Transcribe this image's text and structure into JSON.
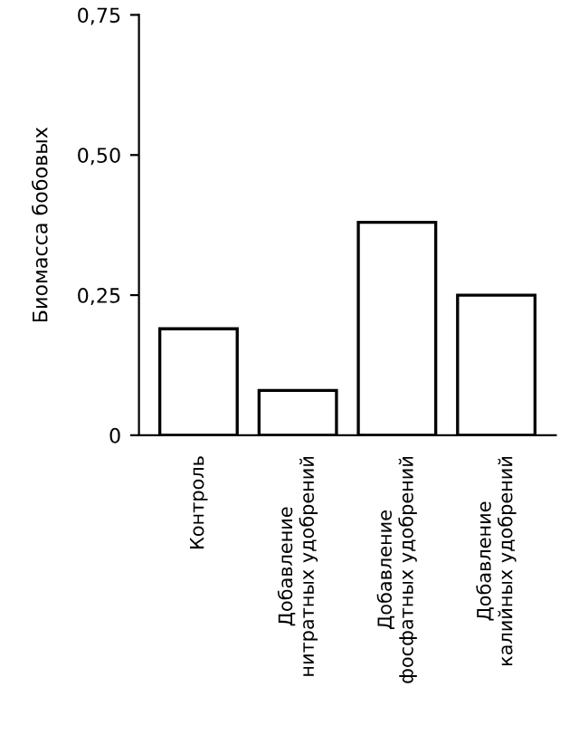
{
  "chart_data": {
    "type": "bar",
    "ylabel": "Биомасса бобовых",
    "categories": [
      "Контроль",
      "Добавление\nнитратных удобрений",
      "Добавление\nфосфатных удобрений",
      "Добавление\nкалийных удобрений"
    ],
    "values": [
      0.19,
      0.08,
      0.38,
      0.25
    ],
    "color": "#ffffff",
    "ylim": [
      0,
      0.75
    ],
    "yticks": [
      {
        "value": 0,
        "label": "0"
      },
      {
        "value": 0.25,
        "label": "0,25"
      },
      {
        "value": 0.5,
        "label": "0,50"
      },
      {
        "value": 0.75,
        "label": "0,75"
      }
    ],
    "grid": false,
    "legend": false
  }
}
